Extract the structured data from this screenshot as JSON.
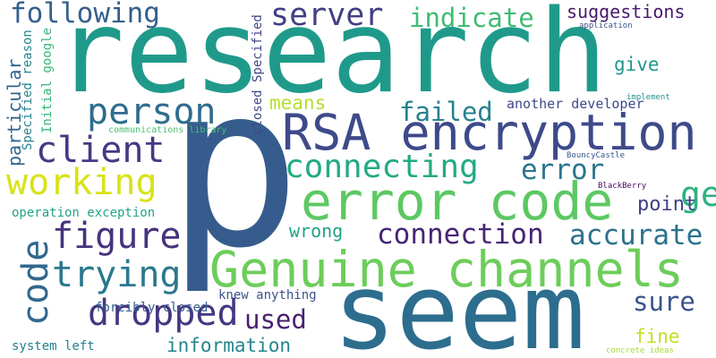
{
  "cloud": {
    "background": "#ffffff",
    "words": {
      "p": {
        "text": "p",
        "color": "#365c8d"
      },
      "research": {
        "text": "research",
        "color": "#1f9a8a"
      },
      "seem": {
        "text": "seem",
        "color": "#2d6d8e"
      },
      "genuine_channels": {
        "text": "Genuine channels",
        "color": "#6ccd5a"
      },
      "rsa_encryption": {
        "text": "RSA encryption",
        "color": "#3e4a89"
      },
      "error_code": {
        "text": "error code",
        "color": "#5cc863"
      },
      "connecting": {
        "text": "connecting",
        "color": "#24aa83"
      },
      "error": {
        "text": "error",
        "color": "#2b758e"
      },
      "getting": {
        "text": "getting",
        "color": "#2db27d"
      },
      "person": {
        "text": "person",
        "color": "#2f6c8e"
      },
      "client": {
        "text": "client",
        "color": "#443a83"
      },
      "working": {
        "text": "working",
        "color": "#d8e219"
      },
      "figure": {
        "text": "figure",
        "color": "#46337e"
      },
      "trying": {
        "text": "trying",
        "color": "#2a788e"
      },
      "code": {
        "text": "code",
        "color": "#31688e"
      },
      "dropped": {
        "text": "dropped",
        "color": "#453781"
      },
      "connection": {
        "text": "connection",
        "color": "#482475"
      },
      "accurate": {
        "text": "accurate",
        "color": "#2c728e"
      },
      "following": {
        "text": "following",
        "color": "#355f8d"
      },
      "server": {
        "text": "server",
        "color": "#433e85"
      },
      "indicate": {
        "text": "indicate",
        "color": "#3fbc73"
      },
      "suggestions": {
        "text": "suggestions",
        "color": "#481a6c"
      },
      "failed": {
        "text": "failed",
        "color": "#26818e"
      },
      "used": {
        "text": "used",
        "color": "#481f70"
      },
      "sure": {
        "text": "sure",
        "color": "#3b528b"
      },
      "point": {
        "text": "point",
        "color": "#424086"
      },
      "means": {
        "text": "means",
        "color": "#b5de2b"
      },
      "give": {
        "text": "give",
        "color": "#1f988b"
      },
      "wrong": {
        "text": "wrong",
        "color": "#21a585"
      },
      "fine": {
        "text": "fine",
        "color": "#c2df23"
      },
      "information": {
        "text": "information",
        "color": "#24868e"
      },
      "particular": {
        "text": "particular",
        "color": "#32658e"
      },
      "another_developer": {
        "text": "another developer",
        "color": "#3e4989"
      },
      "operation_exception": {
        "text": "operation exception",
        "color": "#20a486"
      },
      "forcibly_closed": {
        "text": "forcibly closed",
        "color": "#355e8d"
      },
      "knew_anything": {
        "text": "knew anything",
        "color": "#3b528b"
      },
      "system_left": {
        "text": "system left",
        "color": "#27808e"
      },
      "closed_specified": {
        "text": "closed Specified",
        "color": "#404688"
      },
      "specified_reason": {
        "text": "Specified reason",
        "color": "#25858e"
      },
      "initial_google": {
        "text": "Initial google",
        "color": "#35b779"
      },
      "communications_library": {
        "text": "communications library",
        "color": "#4ac16d"
      },
      "application": {
        "text": "application",
        "color": "#3b528b"
      },
      "implement": {
        "text": "implement",
        "color": "#21918c"
      },
      "bouncycastle": {
        "text": "BouncyCastle",
        "color": "#39568c"
      },
      "blackberry": {
        "text": "BlackBerry",
        "color": "#46085c"
      },
      "concrete_ideas": {
        "text": "concrete ideas",
        "color": "#a5db36"
      }
    }
  }
}
